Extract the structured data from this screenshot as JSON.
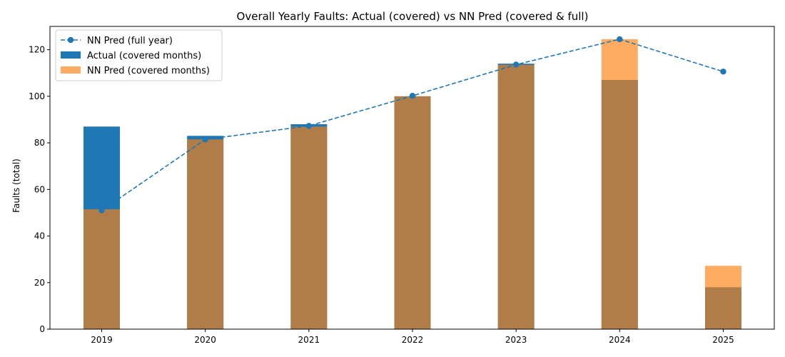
{
  "chart_data": {
    "type": "bar",
    "title": "Overall Yearly Faults: Actual (covered) vs NN Pred (covered & full)",
    "xlabel": "",
    "ylabel": "Faults (total)",
    "categories": [
      "2019",
      "2020",
      "2021",
      "2022",
      "2023",
      "2024",
      "2025"
    ],
    "ylim": [
      0,
      130
    ],
    "yticks": [
      0,
      20,
      40,
      60,
      80,
      100,
      120
    ],
    "grid": false,
    "legend_position": "top-left",
    "series": [
      {
        "name": "Actual (covered months)",
        "kind": "bar",
        "color": "#1f77b4",
        "opacity": 1.0,
        "values": [
          87,
          83,
          88,
          100,
          114,
          107,
          18
        ]
      },
      {
        "name": "NN Pred (covered months)",
        "kind": "bar",
        "color": "#ff7f0e",
        "opacity": 0.65,
        "values": [
          51.5,
          81.5,
          87,
          100,
          113.5,
          124.5,
          27.2
        ]
      },
      {
        "name": "NN Pred (full year)",
        "kind": "line",
        "color": "#1f77b4",
        "style": "dashed",
        "marker": "circle",
        "values": [
          51,
          81.5,
          87.3,
          100.2,
          113.6,
          124.5,
          110.6
        ]
      }
    ]
  }
}
